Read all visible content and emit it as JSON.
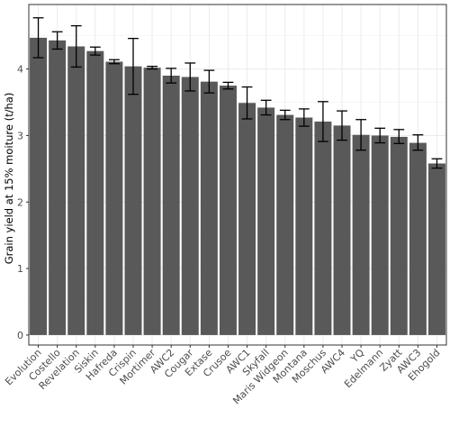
{
  "chart_data": {
    "type": "bar",
    "title": "",
    "xlabel": "",
    "ylabel": "Grain yield at 15% moiture (t/ha)",
    "ylim": [
      0,
      5
    ],
    "yticks": [
      0,
      1,
      2,
      3,
      4
    ],
    "grid": true,
    "error_bars": true,
    "colors": {
      "bar": "#595959",
      "panel_border": "#333333",
      "grid": "#ebebeb",
      "error_bar": "#000000"
    },
    "categories": [
      "Evolution",
      "Costello",
      "Revelation",
      "Siskin",
      "Hafreda",
      "Crispin",
      "Mortimer",
      "AWC2",
      "Cougar",
      "Extase",
      "Crusoe",
      "AWC1",
      "Skyfall",
      "Maris Widgeon",
      "Montana",
      "Moschus",
      "AWC4",
      "YQ",
      "Edelmann",
      "Zyatt",
      "AWC3",
      "Ehogold"
    ],
    "values": [
      4.47,
      4.43,
      4.34,
      4.27,
      4.11,
      4.04,
      4.02,
      3.9,
      3.88,
      3.81,
      3.75,
      3.49,
      3.42,
      3.31,
      3.27,
      3.21,
      3.15,
      3.01,
      3.0,
      2.98,
      2.89,
      2.58
    ],
    "error_low": [
      4.17,
      4.3,
      4.03,
      4.21,
      4.08,
      3.62,
      4.0,
      3.79,
      3.67,
      3.64,
      3.7,
      3.25,
      3.31,
      3.24,
      3.14,
      2.91,
      2.93,
      2.78,
      2.89,
      2.88,
      2.78,
      2.51
    ],
    "error_high": [
      4.77,
      4.56,
      4.65,
      4.33,
      4.14,
      4.46,
      4.04,
      4.01,
      4.09,
      3.98,
      3.8,
      3.73,
      3.53,
      3.38,
      3.4,
      3.51,
      3.37,
      3.24,
      3.11,
      3.09,
      3.01,
      2.65
    ]
  }
}
